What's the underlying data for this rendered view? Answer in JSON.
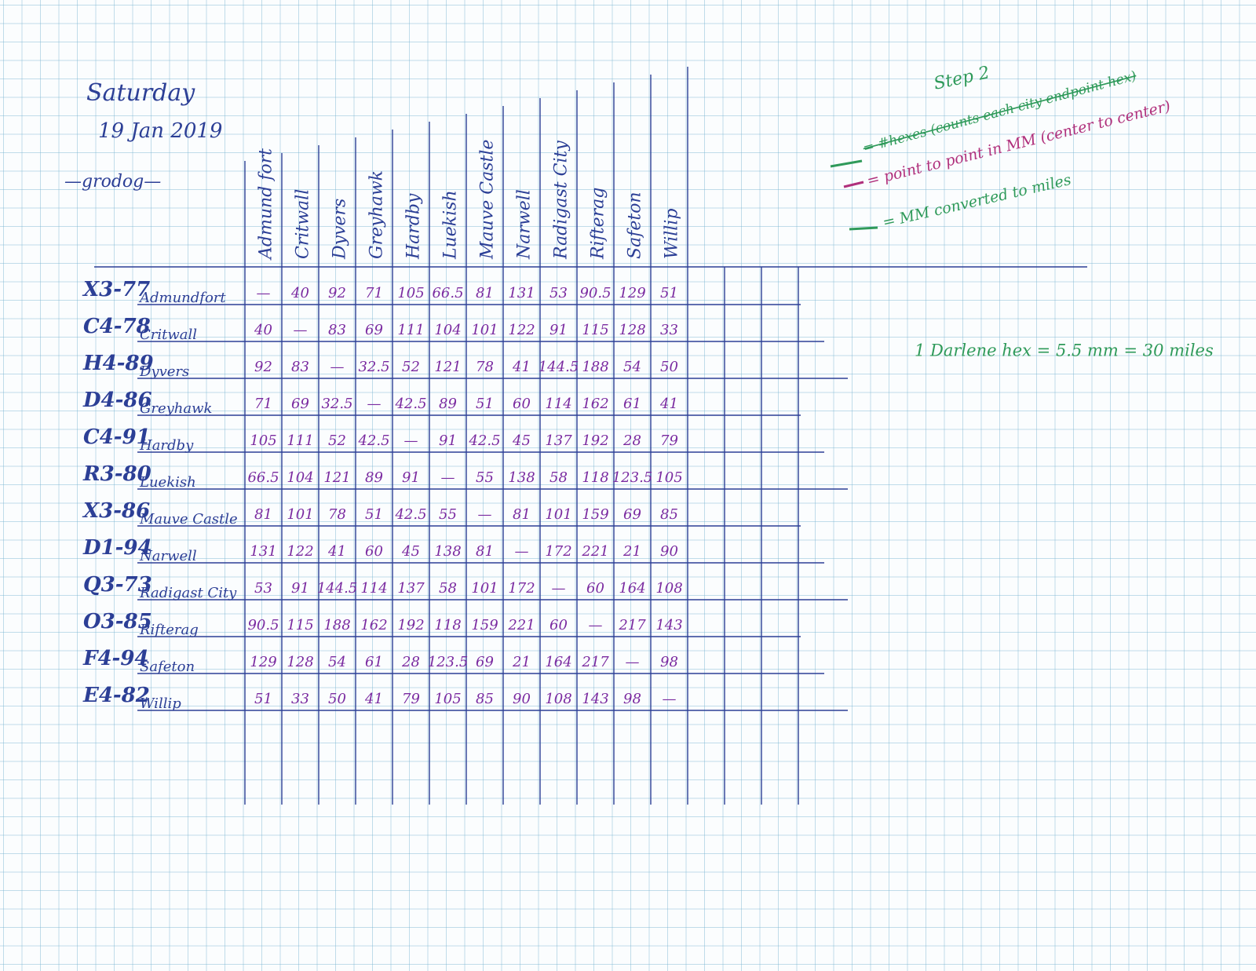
{
  "header": {
    "day": "Saturday",
    "date": "19 Jan 2019",
    "author": "—grodog—"
  },
  "notes": {
    "step": "Step 2",
    "legend": [
      "= #hexes (counts each city endpoint hex)",
      "= point to point in MM (center to center)",
      "= MM converted to miles"
    ],
    "conversion": "1 Darlene hex = 5.5 mm = 30 miles"
  },
  "table": {
    "columns": [
      "Admund fort",
      "Critwall",
      "Dyvers",
      "Greyhawk",
      "Hardby",
      "Luekish",
      "Mauve Castle",
      "Narwell",
      "Radigast City",
      "Rifterag",
      "Safeton",
      "Willip"
    ],
    "rows": [
      {
        "code": "X3-77",
        "name": "Admundfort",
        "cells": [
          "—",
          "40",
          "92",
          "71",
          "105",
          "66.5",
          "81",
          "131",
          "53",
          "90.5",
          "129",
          "51"
        ]
      },
      {
        "code": "C4-78",
        "name": "Critwall",
        "cells": [
          "40",
          "—",
          "83",
          "69",
          "111",
          "104",
          "101",
          "122",
          "91",
          "115",
          "128",
          "33"
        ]
      },
      {
        "code": "H4-89",
        "name": "Dyvers",
        "cells": [
          "92",
          "83",
          "—",
          "32.5",
          "52",
          "121",
          "78",
          "41",
          "144.5",
          "188",
          "54",
          "50"
        ]
      },
      {
        "code": "D4-86",
        "name": "Greyhawk",
        "cells": [
          "71",
          "69",
          "32.5",
          "—",
          "42.5",
          "89",
          "51",
          "60",
          "114",
          "162",
          "61",
          "41"
        ]
      },
      {
        "code": "C4-91",
        "name": "Hardby",
        "cells": [
          "105",
          "111",
          "52",
          "42.5",
          "—",
          "91",
          "42.5",
          "45",
          "137",
          "192",
          "28",
          "79"
        ]
      },
      {
        "code": "R3-80",
        "name": "Luekish",
        "cells": [
          "66.5",
          "104",
          "121",
          "89",
          "91",
          "—",
          "55",
          "138",
          "58",
          "118",
          "123.5",
          "105"
        ]
      },
      {
        "code": "X3-86",
        "name": "Mauve Castle",
        "cells": [
          "81",
          "101",
          "78",
          "51",
          "42.5",
          "55",
          "—",
          "81",
          "101",
          "159",
          "69",
          "85"
        ]
      },
      {
        "code": "D1-94",
        "name": "Narwell",
        "cells": [
          "131",
          "122",
          "41",
          "60",
          "45",
          "138",
          "81",
          "—",
          "172",
          "221",
          "21",
          "90"
        ]
      },
      {
        "code": "Q3-73",
        "name": "Radigast City",
        "cells": [
          "53",
          "91",
          "144.5",
          "114",
          "137",
          "58",
          "101",
          "172",
          "—",
          "60",
          "164",
          "108"
        ]
      },
      {
        "code": "O3-85",
        "name": "Rifterag",
        "cells": [
          "90.5",
          "115",
          "188",
          "162",
          "192",
          "118",
          "159",
          "221",
          "60",
          "—",
          "217",
          "143"
        ]
      },
      {
        "code": "F4-94",
        "name": "Safeton",
        "cells": [
          "129",
          "128",
          "54",
          "61",
          "28",
          "123.5",
          "69",
          "21",
          "164",
          "217",
          "—",
          "98"
        ]
      },
      {
        "code": "E4-82",
        "name": "Willip",
        "cells": [
          "51",
          "33",
          "50",
          "41",
          "79",
          "105",
          "85",
          "90",
          "108",
          "143",
          "98",
          "—"
        ]
      }
    ]
  }
}
